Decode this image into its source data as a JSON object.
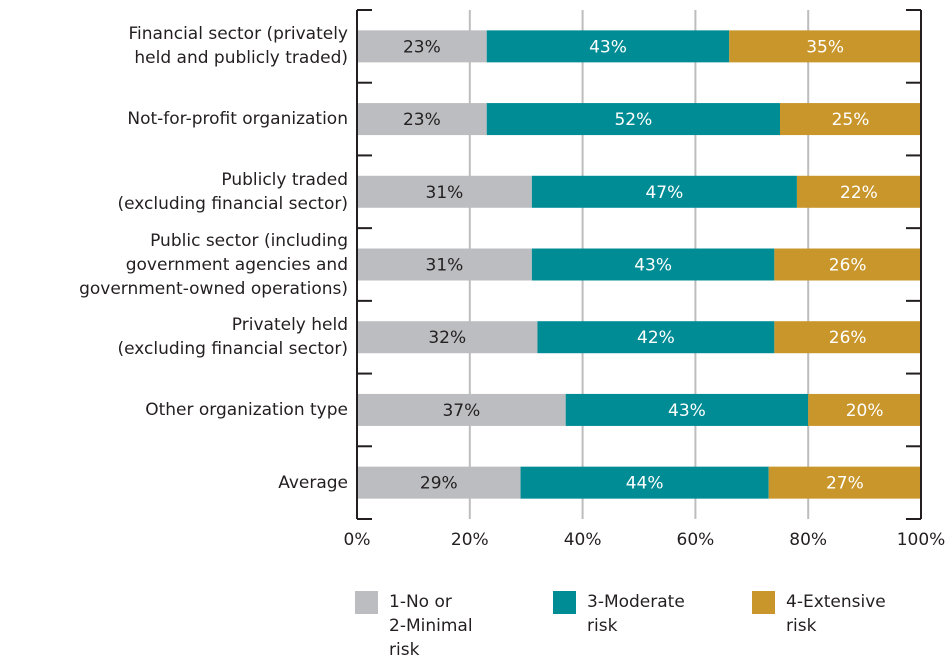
{
  "chart_data": {
    "type": "stacked-bar-horizontal",
    "categories": [
      "Financial sector (privately\nheld and publicly traded)",
      "Not-for-profit organization",
      "Publicly traded\n(excluding financial sector)",
      "Public sector (including\ngovernment agencies and\ngovernment-owned operations)",
      "Privately held\n(excluding financial sector)",
      "Other organization type",
      "Average"
    ],
    "series": [
      {
        "name": "1-No or\n2-Minimal\nrisk",
        "color": "#bcbdc0",
        "label_color": "#231f20",
        "values": [
          23,
          23,
          31,
          31,
          32,
          37,
          29
        ],
        "value_labels": [
          "23%",
          "23%",
          "31%",
          "31%",
          "32%",
          "37%",
          "29%"
        ]
      },
      {
        "name": "3-Moderate\nrisk",
        "color": "#008c95",
        "label_color": "#ffffff",
        "values": [
          43,
          52,
          47,
          43,
          42,
          43,
          44
        ],
        "value_labels": [
          "43%",
          "52%",
          "47%",
          "43%",
          "42%",
          "43%",
          "44%"
        ]
      },
      {
        "name": "4-Extensive\nrisk",
        "color": "#c9962b",
        "label_color": "#ffffff",
        "values": [
          35,
          25,
          22,
          26,
          26,
          20,
          27
        ],
        "value_labels": [
          "35%",
          "25%",
          "22%",
          "26%",
          "26%",
          "20%",
          "27%"
        ]
      }
    ],
    "xlim": [
      0,
      100
    ],
    "xticks": [
      {
        "value": 0,
        "label": "0%"
      },
      {
        "value": 20,
        "label": "20%"
      },
      {
        "value": 40,
        "label": "40%"
      },
      {
        "value": 60,
        "label": "60%"
      },
      {
        "value": 80,
        "label": "80%"
      },
      {
        "value": 100,
        "label": "100%"
      }
    ],
    "grid": true
  }
}
